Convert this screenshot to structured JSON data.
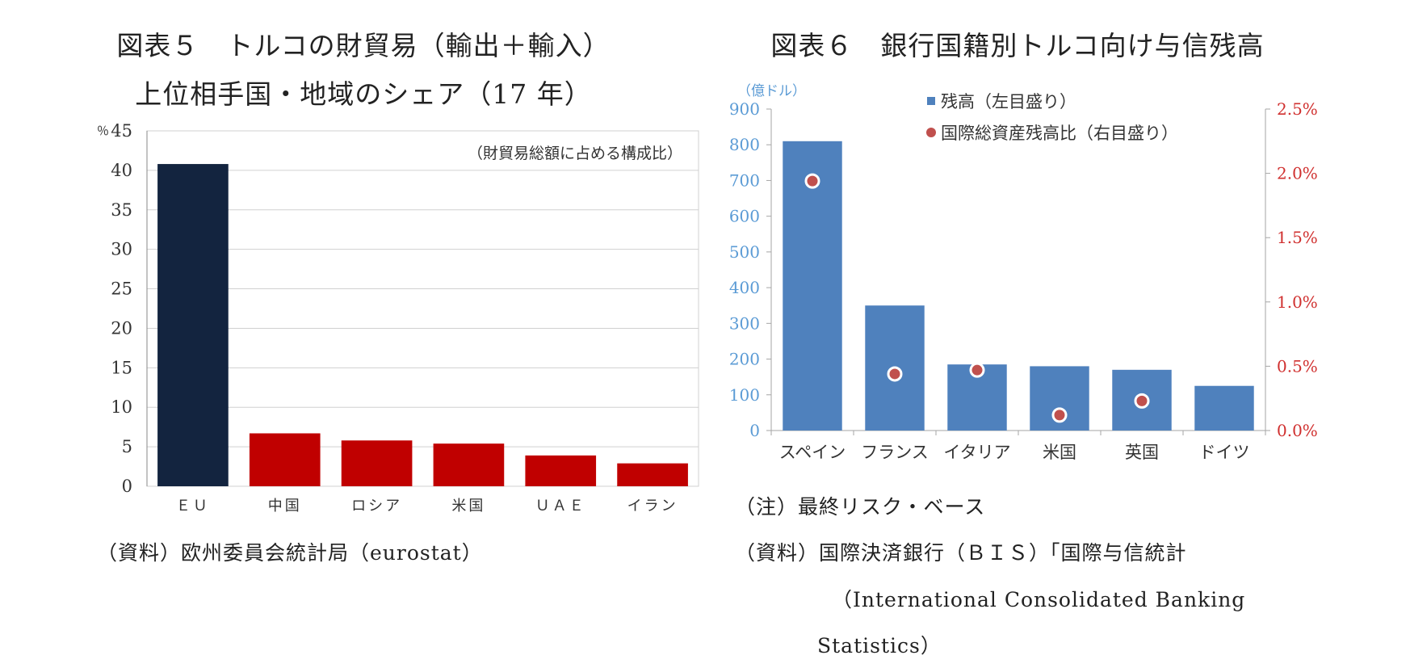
{
  "left": {
    "title_line1": "図表５　トルコの財貿易（輸出＋輸入）",
    "title_line2": "上位相手国・地域のシェア（17 年）",
    "source": "（資料）欧州委員会統計局（eurostat）"
  },
  "right": {
    "title": "図表６　銀行国籍別トルコ向け与信残高",
    "note": "（注）最終リスク・ベース",
    "source_line1": "（資料）国際決済銀行（ＢＩＳ）「国際与信統計",
    "source_line2": "（International Consolidated Banking",
    "source_line3": "Statistics）"
  },
  "chart_data": [
    {
      "type": "bar",
      "unit_label": "％",
      "annotation": "（財貿易総額に占める構成比）",
      "categories": [
        "ＥＵ",
        "中国",
        "ロシア",
        "米国",
        "ＵＡＥ",
        "イラン"
      ],
      "values": [
        40.8,
        6.7,
        5.8,
        5.4,
        3.9,
        2.9
      ],
      "bar_colors": [
        "#13243f",
        "#c00000",
        "#c00000",
        "#c00000",
        "#c00000",
        "#c00000"
      ],
      "ylim": [
        0,
        45
      ],
      "yticks": [
        0,
        5,
        10,
        15,
        20,
        25,
        30,
        35,
        40,
        45
      ],
      "grid": true
    },
    {
      "type": "bar",
      "unit_label": "（億ドル）",
      "categories": [
        "スペイン",
        "フランス",
        "イタリア",
        "米国",
        "英国",
        "ドイツ"
      ],
      "series": [
        {
          "name": "残高（左目盛り）",
          "values": [
            810,
            350,
            185,
            180,
            170,
            125
          ],
          "color": "#4f81bd"
        },
        {
          "name": "国際総資産残高比（右目盛り）",
          "values": [
            1.94,
            0.44,
            0.47,
            0.12,
            0.23,
            null
          ],
          "color": "#c0504d",
          "type": "scatter",
          "axis": "right"
        }
      ],
      "ylim": [
        0,
        900
      ],
      "yticks": [
        0,
        100,
        200,
        300,
        400,
        500,
        600,
        700,
        800,
        900
      ],
      "y2lim": [
        0,
        2.5
      ],
      "y2ticks": [
        "0.0%",
        "0.5%",
        "1.0%",
        "1.5%",
        "2.0%",
        "2.5%"
      ],
      "left_axis_color": "#5b9bd5",
      "right_axis_color": "#d0302f",
      "legend_position": "top",
      "grid": false
    }
  ]
}
